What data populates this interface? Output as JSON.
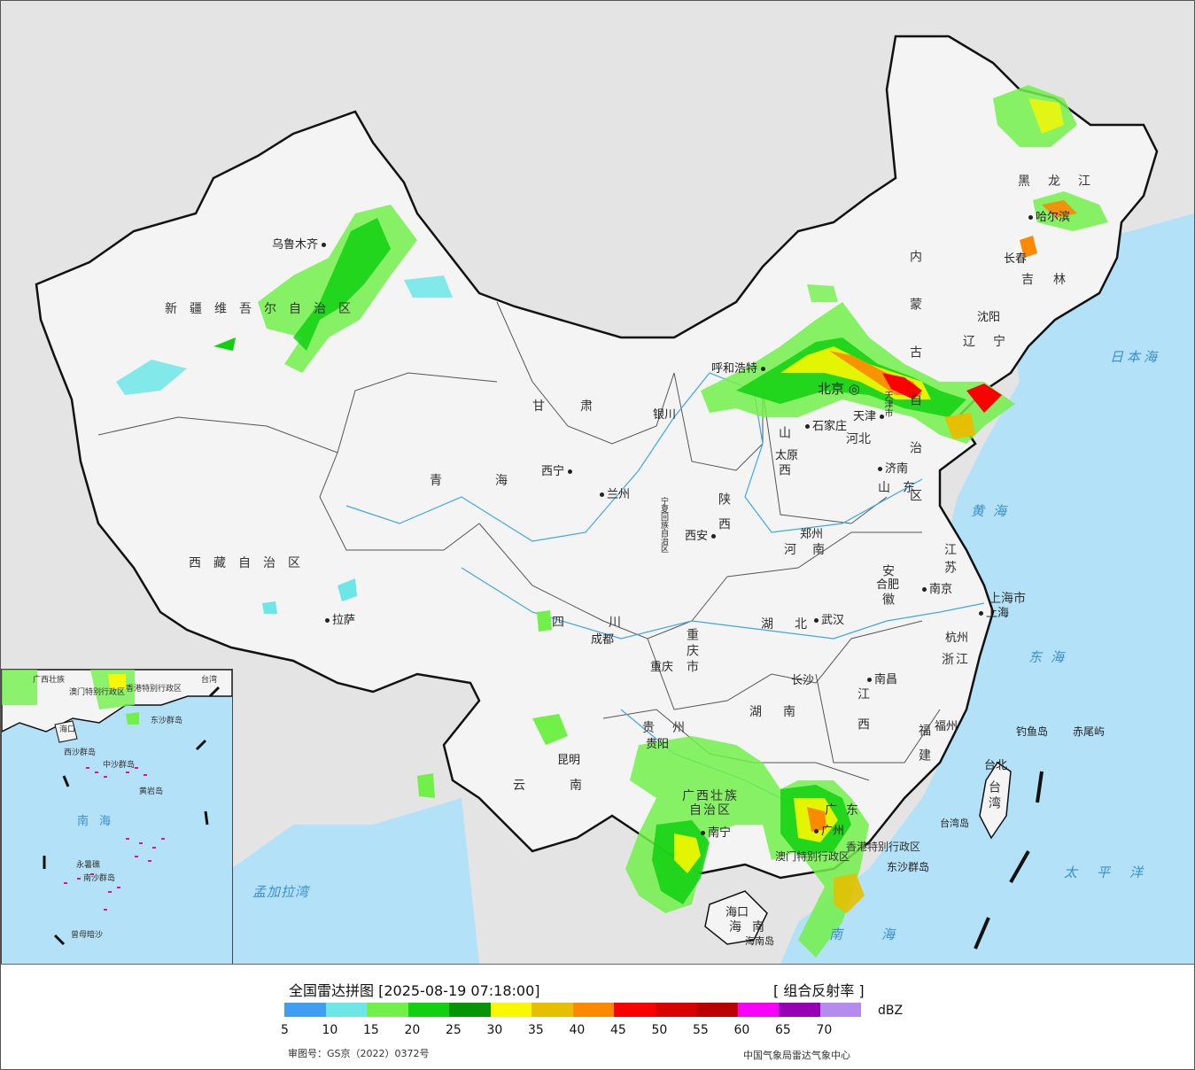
{
  "title": "全国雷达拼图 [2025-08-19 07:18:00]",
  "product": "[ 组合反射率 ]",
  "unit": "dBZ",
  "approval_no": "审图号：GS京（2022）0372号",
  "source": "中国气象局雷达气象中心",
  "legend": {
    "colors": [
      "#3f9ef0",
      "#6de6e8",
      "#72f04a",
      "#10d010",
      "#069406",
      "#f8f800",
      "#e6c000",
      "#fb8a00",
      "#fb0000",
      "#d80000",
      "#bc0000",
      "#f800f8",
      "#9600b4",
      "#b48cf0"
    ],
    "ticks": [
      "5",
      "10",
      "15",
      "20",
      "25",
      "30",
      "35",
      "40",
      "45",
      "50",
      "55",
      "60",
      "65",
      "70"
    ]
  },
  "regions": [
    {
      "name": "新疆维吾尔自治区"
    },
    {
      "name": "西藏自治区"
    },
    {
      "name": "青海"
    },
    {
      "name": "甘肃"
    },
    {
      "name": "内蒙古自治区"
    },
    {
      "name": "宁夏回族自治区"
    },
    {
      "name": "陕西"
    },
    {
      "name": "山西"
    },
    {
      "name": "河北"
    },
    {
      "name": "山东"
    },
    {
      "name": "河南"
    },
    {
      "name": "四川"
    },
    {
      "name": "重庆市"
    },
    {
      "name": "湖北"
    },
    {
      "name": "湖南"
    },
    {
      "name": "江西"
    },
    {
      "name": "安徽"
    },
    {
      "name": "江苏"
    },
    {
      "name": "浙江"
    },
    {
      "name": "福建"
    },
    {
      "name": "广东"
    },
    {
      "name": "广西壮族自治区"
    },
    {
      "name": "贵州"
    },
    {
      "name": "云南"
    },
    {
      "name": "海南"
    },
    {
      "name": "黑龙江"
    },
    {
      "name": "吉林"
    },
    {
      "name": "辽宁"
    },
    {
      "name": "上海市"
    },
    {
      "name": "天津市"
    },
    {
      "name": "台湾"
    },
    {
      "name": "香港特别行政区"
    },
    {
      "name": "澳门特别行政区"
    }
  ],
  "cities": [
    "乌鲁木齐",
    "拉萨",
    "西宁",
    "兰州",
    "银川",
    "呼和浩特",
    "北京",
    "天津",
    "石家庄",
    "太原",
    "济南",
    "郑州",
    "西安",
    "成都",
    "重庆",
    "武汉",
    "合肥",
    "南京",
    "上海",
    "杭州",
    "长沙",
    "南昌",
    "福州",
    "台北",
    "贵阳",
    "昆明",
    "南宁",
    "广州",
    "海口",
    "沈阳",
    "长春",
    "哈尔滨"
  ],
  "seas": [
    "日本海",
    "黄海",
    "东海",
    "太平洋",
    "南海",
    "孟加拉湾"
  ],
  "islands": [
    "钓鱼岛",
    "赤尾屿",
    "东沙群岛",
    "海南岛",
    "台湾岛"
  ],
  "inset_labels": [
    "广西壮族",
    "澳门特别行政区",
    "香港特别行政区",
    "台湾",
    "海口",
    "东沙群岛",
    "西沙群岛",
    "中沙群岛",
    "黄岩岛",
    "南海",
    "永暑礁",
    "南沙群岛",
    "曾母暗沙"
  ]
}
